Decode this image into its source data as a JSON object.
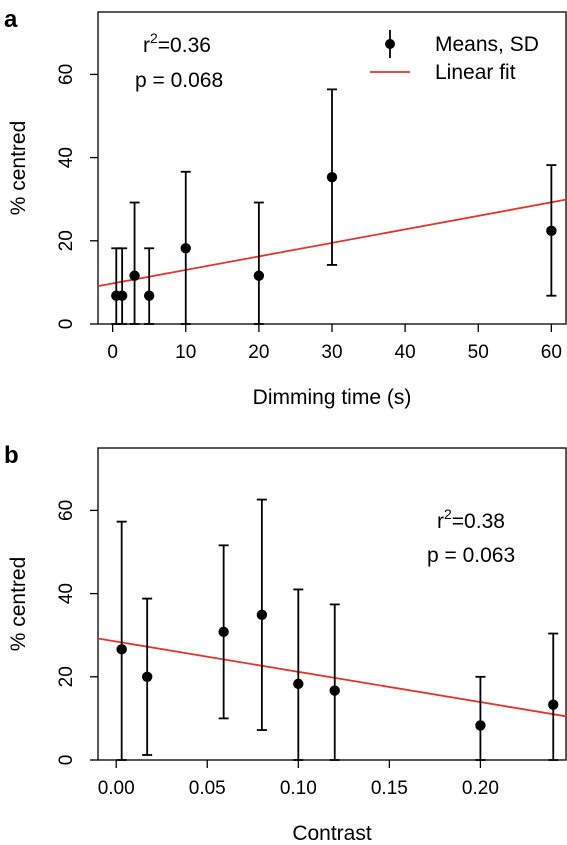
{
  "chart_data": [
    {
      "panel": "a",
      "type": "scatter",
      "xlabel": "Dimming time (s)",
      "ylabel": "% centred",
      "xlim": [
        -2,
        62
      ],
      "ylim": [
        0,
        75
      ],
      "xticks": [
        0,
        10,
        20,
        30,
        40,
        50,
        60
      ],
      "xtick_labels": [
        "0",
        "10",
        "20",
        "30",
        "40",
        "50",
        "60"
      ],
      "yticks": [
        0,
        20,
        40,
        60
      ],
      "ytick_labels": [
        "0",
        "20",
        "40",
        "60"
      ],
      "stats": {
        "r2_prefix": "r",
        "r2_sup": "2",
        "r2_value": "=0.36",
        "p": "p = 0.068"
      },
      "legend": {
        "position": "top-right",
        "means_label": "Means, SD",
        "fit_label": "Linear fit"
      },
      "points": [
        {
          "x": 0.5,
          "mean": 6.8,
          "lo": 0,
          "hi": 18.2
        },
        {
          "x": 1.3,
          "mean": 6.8,
          "lo": 0,
          "hi": 18.2
        },
        {
          "x": 3,
          "mean": 11.6,
          "lo": 0,
          "hi": 29.2
        },
        {
          "x": 5,
          "mean": 6.8,
          "lo": 0,
          "hi": 18.2
        },
        {
          "x": 10,
          "mean": 18.2,
          "lo": 0,
          "hi": 36.6
        },
        {
          "x": 20,
          "mean": 11.6,
          "lo": 0,
          "hi": 29.2
        },
        {
          "x": 30,
          "mean": 35.3,
          "lo": 14.2,
          "hi": 56.4
        },
        {
          "x": 60,
          "mean": 22.4,
          "lo": 6.8,
          "hi": 38.2
        }
      ],
      "fit": {
        "x": [
          -2,
          62
        ],
        "y": [
          9.1,
          29.9
        ]
      },
      "colors": {
        "points": "#000000",
        "fit": "#e3342f"
      }
    },
    {
      "panel": "b",
      "type": "scatter",
      "xlabel": "Contrast",
      "ylabel": "% centred",
      "xlim": [
        -0.01,
        0.247
      ],
      "ylim": [
        0,
        75
      ],
      "xticks": [
        0,
        0.05,
        0.1,
        0.15,
        0.2
      ],
      "xtick_labels": [
        "0.00",
        "0.05",
        "0.10",
        "0.15",
        "0.20"
      ],
      "yticks": [
        0,
        20,
        40,
        60
      ],
      "ytick_labels": [
        "0",
        "20",
        "40",
        "60"
      ],
      "stats": {
        "r2_prefix": "r",
        "r2_sup": "2",
        "r2_value": "=0.38",
        "p": "p = 0.063"
      },
      "points": [
        {
          "x": 0.003,
          "mean": 26.6,
          "lo": 0,
          "hi": 57.3
        },
        {
          "x": 0.017,
          "mean": 20.0,
          "lo": 1.2,
          "hi": 38.8
        },
        {
          "x": 0.059,
          "mean": 30.8,
          "lo": 10.0,
          "hi": 51.6
        },
        {
          "x": 0.08,
          "mean": 34.9,
          "lo": 7.2,
          "hi": 62.6
        },
        {
          "x": 0.1,
          "mean": 18.3,
          "lo": 0,
          "hi": 41.0
        },
        {
          "x": 0.12,
          "mean": 16.7,
          "lo": 0,
          "hi": 37.4
        },
        {
          "x": 0.2,
          "mean": 8.3,
          "lo": 0,
          "hi": 20.0
        },
        {
          "x": 0.24,
          "mean": 13.3,
          "lo": 0,
          "hi": 30.4
        }
      ],
      "fit": {
        "x": [
          -0.01,
          0.247
        ],
        "y": [
          29.2,
          10.5
        ]
      },
      "colors": {
        "points": "#000000",
        "fit": "#e3342f"
      }
    }
  ]
}
